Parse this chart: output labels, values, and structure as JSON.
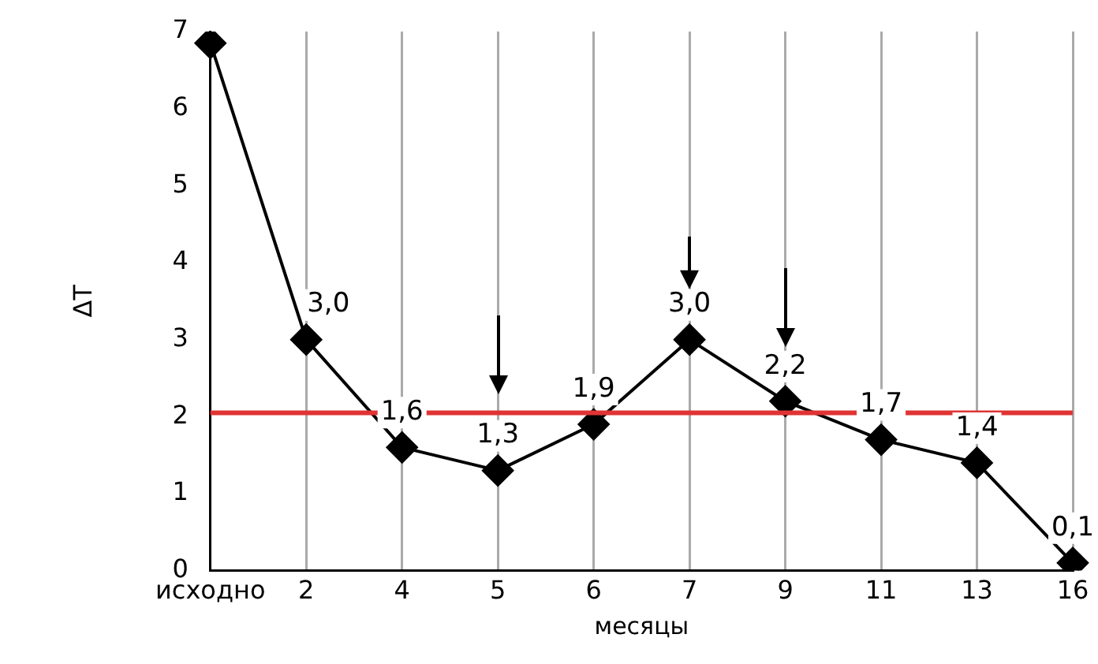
{
  "chart_data": {
    "type": "line",
    "xlabel": "месяцы",
    "ylabel": "ΔT",
    "categories": [
      "исходно",
      "2",
      "4",
      "5",
      "6",
      "7",
      "9",
      "11",
      "13",
      "16"
    ],
    "values": [
      6.85,
      3.0,
      1.6,
      1.3,
      1.9,
      3.0,
      2.2,
      1.7,
      1.4,
      0.1
    ],
    "value_labels": [
      null,
      "3,0",
      "1,6",
      "1,3",
      "1,9",
      "3,0",
      "2,2",
      "1,7",
      "1,4",
      "0,1"
    ],
    "color": "#000000",
    "marker": "diamond",
    "line_style": "solid",
    "ylim": [
      0,
      7
    ],
    "yticks": [
      0,
      1,
      2,
      3,
      4,
      5,
      6,
      7
    ],
    "grid": "x",
    "legend": false,
    "ref_lines": [
      {
        "axis": "y",
        "value": 2.05,
        "color": "#e03434"
      }
    ]
  }
}
